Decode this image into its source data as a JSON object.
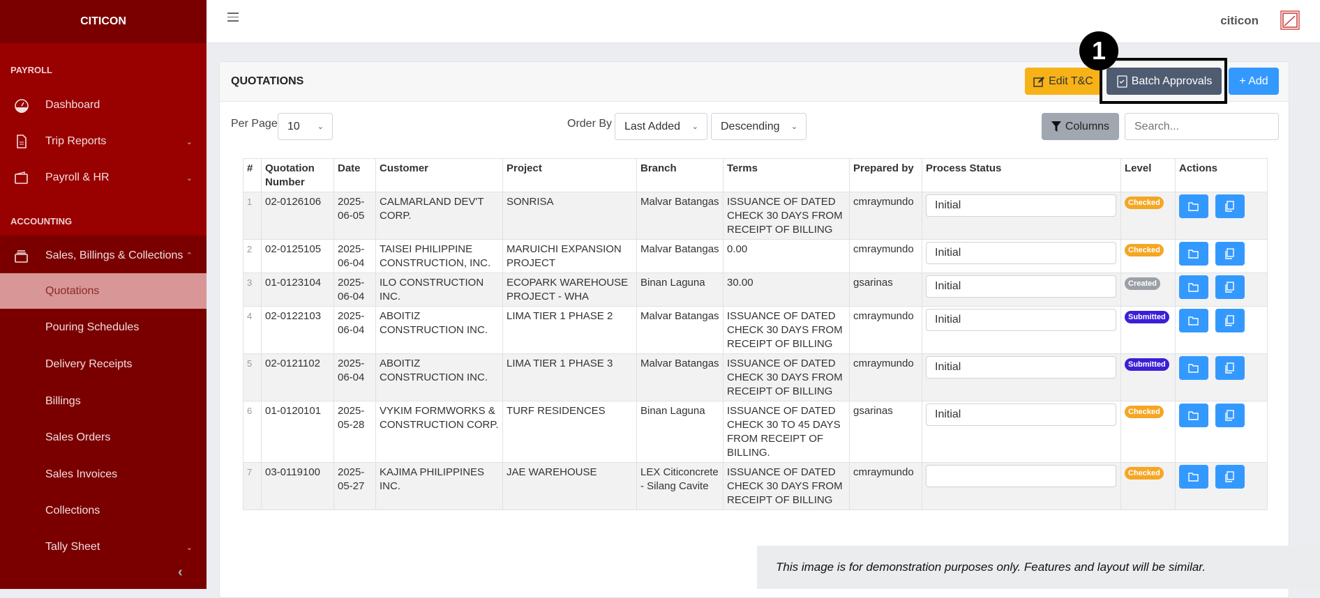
{
  "sidebar": {
    "brand": "CITICON",
    "sections": [
      "PAYROLL",
      "ACCOUNTING"
    ],
    "items": [
      {
        "label": "Dashboard",
        "icon": "dashboard-gauge-icon"
      },
      {
        "label": "Trip Reports",
        "icon": "document-icon"
      },
      {
        "label": "Payroll & HR",
        "icon": "wallet-icon"
      },
      {
        "label": "Sales, Billings & Collections",
        "icon": "cash-register-icon"
      }
    ],
    "sub_items": [
      "Quotations",
      "Pouring Schedules",
      "Delivery Receipts",
      "Billings",
      "Sales Orders",
      "Sales Invoices",
      "Collections",
      "Tally Sheet"
    ],
    "active": "Quotations"
  },
  "header": {
    "user": "citicon"
  },
  "card": {
    "title": "QUOTATIONS",
    "edit_tc": "Edit T&C",
    "batch": "Batch Approvals",
    "add": "+ Add",
    "annotation_number": "1"
  },
  "controls": {
    "per_page_label": "Per Page",
    "per_page": "10",
    "order_by_label": "Order By",
    "order_by": "Last Added",
    "direction": "Descending",
    "columns": "Columns",
    "search_placeholder": "Search..."
  },
  "table": {
    "headers": [
      "#",
      "Quotation Number",
      "Date",
      "Customer",
      "Project",
      "Branch",
      "Terms",
      "Prepared by",
      "Process Status",
      "Level",
      "Actions"
    ],
    "rows": [
      [
        "1",
        "02-0126106",
        "2025-06-05",
        "CALMARLAND DEV'T CORP.",
        "SONRISA",
        "Malvar Batangas",
        "ISSUANCE OF DATED CHECK 30 DAYS FROM RECEIPT OF BILLING",
        "cmraymundo",
        "Initial",
        "Checked"
      ],
      [
        "2",
        "02-0125105",
        "2025-06-04",
        "TAISEI PHILIPPINE CONSTRUCTION, INC.",
        "MARUICHI EXPANSION PROJECT",
        "Malvar Batangas",
        "0.00",
        "cmraymundo",
        "Initial",
        "Checked"
      ],
      [
        "3",
        "01-0123104",
        "2025-06-04",
        "ILO CONSTRUCTION INC.",
        "ECOPARK WAREHOUSE PROJECT - WHA",
        "Binan Laguna",
        "30.00",
        "gsarinas",
        "Initial",
        "Created"
      ],
      [
        "4",
        "02-0122103",
        "2025-06-04",
        "ABOITIZ CONSTRUCTION INC.",
        "LIMA TIER 1 PHASE 2",
        "Malvar Batangas",
        "ISSUANCE OF DATED CHECK 30 DAYS FROM RECEIPT OF BILLING",
        "cmraymundo",
        "Initial",
        "Submitted"
      ],
      [
        "5",
        "02-0121102",
        "2025-06-04",
        "ABOITIZ CONSTRUCTION INC.",
        "LIMA TIER 1 PHASE 3",
        "Malvar Batangas",
        "ISSUANCE OF DATED CHECK 30 DAYS FROM RECEIPT OF BILLING",
        "cmraymundo",
        "Initial",
        "Submitted"
      ],
      [
        "6",
        "01-0120101",
        "2025-05-28",
        "VYKIM FORMWORKS & CONSTRUCTION CORP.",
        "TURF RESIDENCES",
        "Binan Laguna",
        "ISSUANCE OF DATED CHECK 30 TO 45 DAYS FROM RECEIPT OF BILLING.",
        "gsarinas",
        "Initial",
        "Checked"
      ],
      [
        "7",
        "03-0119100",
        "2025-05-27",
        "KAJIMA PHILIPPINES INC.",
        "JAE WAREHOUSE",
        "LEX Citiconcrete - Silang Cavite",
        "ISSUANCE OF DATED CHECK 30 DAYS FROM RECEIPT OF BILLING",
        "cmraymundo",
        "",
        "Checked"
      ]
    ]
  },
  "level_colors": {
    "Checked": "#f5a623",
    "Created": "#9aa0a6",
    "Submitted": "#3a1fd6"
  },
  "colors": {
    "sidebar": "#990000",
    "sidebar_dark": "#7a0000",
    "active": "#d99696",
    "primary": "#3399ff",
    "warning": "#f7b217",
    "secondary": "#4e5b70"
  },
  "disclaimer": "This image is for demonstration purposes only. Features and layout will be similar."
}
